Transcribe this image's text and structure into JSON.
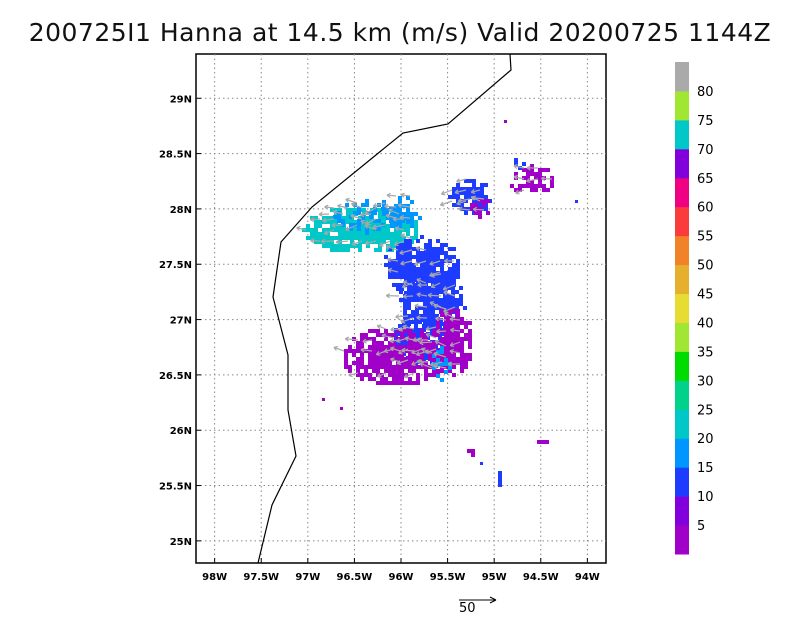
{
  "title": "200725I1 Hanna at 14.5 km (m/s) Valid 20200725 1144Z",
  "map": {
    "lon_range": [
      -98.2,
      -93.8
    ],
    "lat_range": [
      24.8,
      29.4
    ],
    "x_ticks": [
      {
        "value": -98,
        "label": "98W"
      },
      {
        "value": -97.5,
        "label": "97.5W"
      },
      {
        "value": -97,
        "label": "97W"
      },
      {
        "value": -96.5,
        "label": "96.5W"
      },
      {
        "value": -96,
        "label": "96W"
      },
      {
        "value": -95.5,
        "label": "95.5W"
      },
      {
        "value": -95,
        "label": "95W"
      },
      {
        "value": -94.5,
        "label": "94.5W"
      },
      {
        "value": -94,
        "label": "94W"
      }
    ],
    "y_ticks": [
      {
        "value": 25,
        "label": "25N"
      },
      {
        "value": 25.5,
        "label": "25.5N"
      },
      {
        "value": 26,
        "label": "26N"
      },
      {
        "value": 26.5,
        "label": "26.5N"
      },
      {
        "value": 27,
        "label": "27N"
      },
      {
        "value": 27.5,
        "label": "27.5N"
      },
      {
        "value": 28,
        "label": "28N"
      },
      {
        "value": 28.5,
        "label": "28.5N"
      },
      {
        "value": 29,
        "label": "29N"
      }
    ],
    "grid": true,
    "coastline_color": "#000000"
  },
  "colorbar": {
    "colors": [
      "#a000c8",
      "#8200dc",
      "#1e3cff",
      "#0096ff",
      "#00c8c8",
      "#00d28c",
      "#00dc00",
      "#a0e632",
      "#e6dc32",
      "#e6af2d",
      "#f08228",
      "#fa3c3c",
      "#f00082",
      "#8200dc",
      "#00c8c8",
      "#a0e632",
      "#aaaaaa"
    ],
    "labels": [
      "5",
      "10",
      "15",
      "20",
      "25",
      "30",
      "35",
      "40",
      "45",
      "50",
      "55",
      "60",
      "65",
      "70",
      "75",
      "80"
    ]
  },
  "vector_scale": {
    "label": "50"
  }
}
